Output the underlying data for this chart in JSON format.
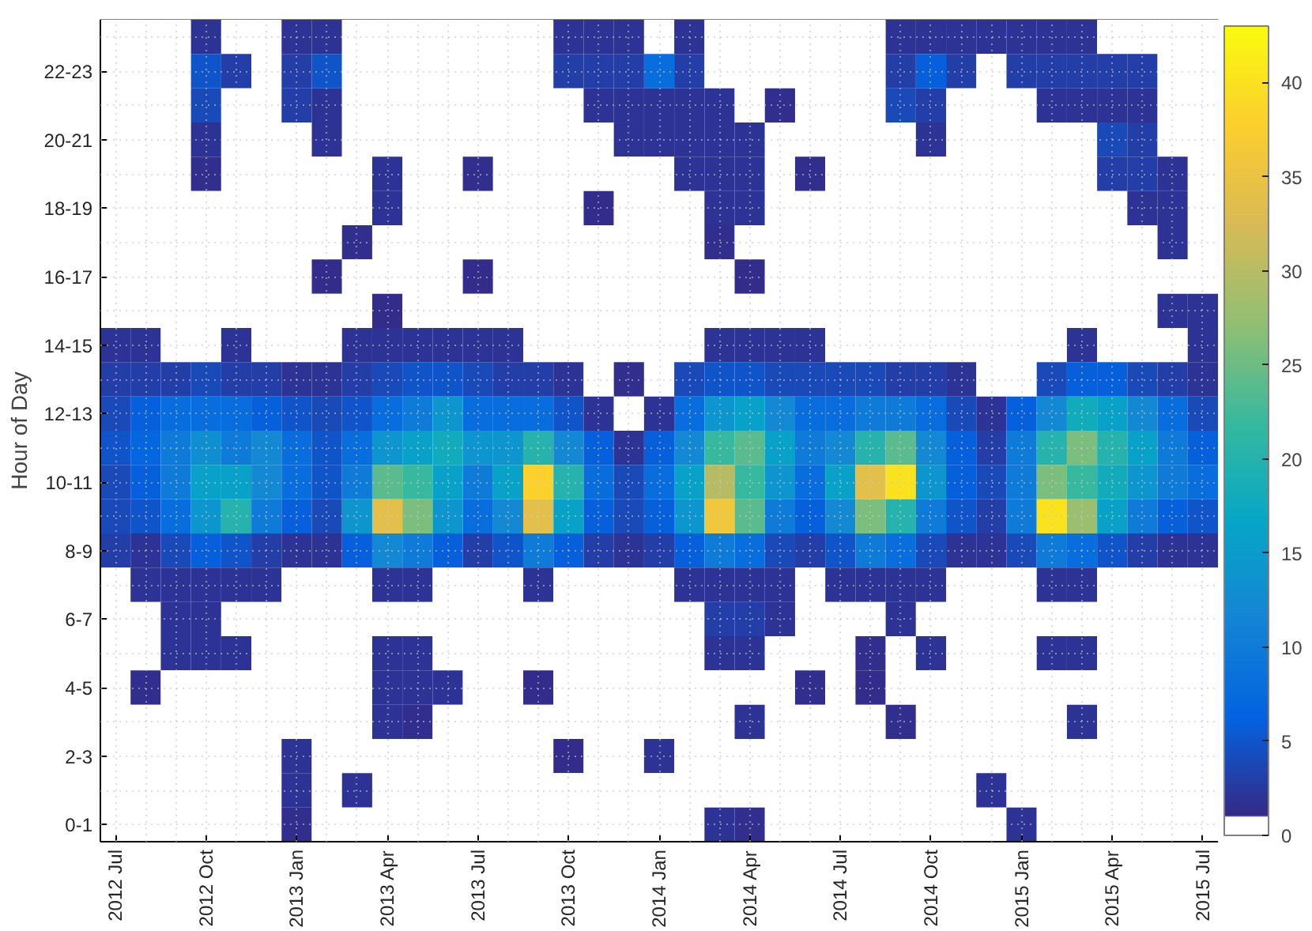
{
  "chart_data": {
    "type": "heatmap",
    "ylabel": "Hour of Day",
    "categories": [
      "2012 Jul",
      null,
      null,
      "2012 Oct",
      null,
      null,
      "2013 Jan",
      null,
      null,
      "2013 Apr",
      null,
      null,
      "2013 Jul",
      null,
      null,
      "2013 Oct",
      null,
      null,
      "2014 Jan",
      null,
      null,
      "2014 Apr",
      null,
      null,
      "2014 Jul",
      null,
      null,
      "2014 Oct",
      null,
      null,
      "2015 Jan",
      null,
      null,
      "2015 Apr",
      null,
      null,
      "2015 Jul"
    ],
    "y_categories": [
      null,
      "22-23",
      null,
      "20-21",
      null,
      "18-19",
      null,
      "16-17",
      null,
      "14-15",
      null,
      "12-13",
      null,
      "10-11",
      null,
      "8-9",
      null,
      "6-7",
      null,
      "4-5",
      null,
      "2-3",
      null,
      "0-1"
    ],
    "cells": [
      [
        0,
        0,
        0,
        2,
        0,
        0,
        2,
        2,
        0,
        0,
        0,
        0,
        0,
        0,
        0,
        2,
        2,
        2,
        0,
        2,
        0,
        0,
        0,
        0,
        0,
        0,
        2,
        2,
        2,
        2,
        2,
        2,
        2,
        0,
        0,
        0,
        0
      ],
      [
        0,
        0,
        0,
        5,
        3,
        0,
        3,
        5,
        0,
        0,
        0,
        0,
        0,
        0,
        0,
        3,
        3,
        3,
        8,
        3,
        0,
        0,
        0,
        0,
        0,
        0,
        3,
        6,
        3,
        0,
        3,
        3,
        3,
        3,
        3,
        0,
        0
      ],
      [
        0,
        0,
        0,
        4,
        0,
        0,
        3,
        2,
        0,
        0,
        0,
        0,
        0,
        0,
        0,
        0,
        2,
        2,
        2,
        2,
        2,
        0,
        1.5,
        0,
        0,
        0,
        4,
        3,
        0,
        0,
        0,
        2,
        2,
        2,
        2,
        0,
        0
      ],
      [
        0,
        0,
        0,
        2,
        0,
        0,
        0,
        2,
        0,
        0,
        0,
        0,
        0,
        0,
        0,
        0,
        0,
        2,
        2,
        2,
        2,
        2,
        0,
        0,
        0,
        0,
        0,
        2,
        0,
        0,
        0,
        0,
        0,
        4,
        3,
        0,
        0
      ],
      [
        0,
        0,
        0,
        1.5,
        0,
        0,
        0,
        0,
        0,
        2,
        0,
        0,
        1.5,
        0,
        0,
        0,
        0,
        0,
        0,
        2,
        2,
        2,
        0,
        1.5,
        0,
        0,
        0,
        0,
        0,
        0,
        0,
        0,
        0,
        3,
        3,
        2,
        0
      ],
      [
        0,
        0,
        0,
        0,
        0,
        0,
        0,
        0,
        0,
        2,
        0,
        0,
        0,
        0,
        0,
        0,
        1.2,
        0,
        0,
        0,
        2,
        2,
        0,
        0,
        0,
        0,
        0,
        0,
        0,
        0,
        0,
        0,
        0,
        0,
        2,
        2,
        0
      ],
      [
        0,
        0,
        0,
        0,
        0,
        0,
        0,
        0,
        1.5,
        0,
        0,
        0,
        0,
        0,
        0,
        0,
        0,
        0,
        0,
        0,
        1.5,
        0,
        0,
        0,
        0,
        0,
        0,
        0,
        0,
        0,
        0,
        0,
        0,
        0,
        0,
        2,
        0
      ],
      [
        0,
        0,
        0,
        0,
        0,
        0,
        0,
        1.2,
        0,
        0,
        0,
        0,
        1.2,
        0,
        0,
        0,
        0,
        0,
        0,
        0,
        0,
        1.2,
        0,
        0,
        0,
        0,
        0,
        0,
        0,
        0,
        0,
        0,
        0,
        0,
        0,
        0,
        0
      ],
      [
        0,
        0,
        0,
        0,
        0,
        0,
        0,
        0,
        0,
        1.2,
        0,
        0,
        0,
        0,
        0,
        0,
        0,
        0,
        0,
        0,
        0,
        0,
        0,
        0,
        0,
        0,
        0,
        0,
        0,
        0,
        0,
        0,
        0,
        0,
        0,
        2,
        2
      ],
      [
        2,
        2,
        0,
        0,
        2,
        0,
        0,
        0,
        2,
        2,
        2,
        2,
        2,
        2,
        0,
        0,
        0,
        0,
        0,
        0,
        2,
        2,
        2,
        2,
        0,
        0,
        0,
        0,
        0,
        0,
        0,
        0,
        2,
        0,
        0,
        0,
        2
      ],
      [
        3,
        3,
        3,
        4,
        3,
        3,
        2,
        2,
        3,
        4,
        5,
        5,
        4,
        3,
        3,
        2,
        0,
        1.5,
        0,
        4,
        5,
        5,
        4,
        4,
        4,
        4,
        3,
        3,
        2,
        1,
        0,
        4,
        6,
        6,
        4,
        3,
        2
      ],
      [
        4,
        6,
        8,
        8,
        8,
        6,
        5,
        4,
        5,
        8,
        10,
        14,
        8,
        8,
        8,
        5,
        2,
        0,
        2,
        8,
        14,
        16,
        12,
        8,
        8,
        10,
        10,
        8,
        4,
        2,
        6,
        12,
        18,
        16,
        12,
        8,
        4
      ],
      [
        5,
        7,
        10,
        13,
        10,
        12,
        8,
        5,
        8,
        14,
        16,
        18,
        14,
        14,
        20,
        12,
        6,
        2,
        6,
        12,
        22,
        24,
        16,
        10,
        12,
        20,
        24,
        12,
        6,
        3,
        10,
        20,
        26,
        20,
        16,
        10,
        6
      ],
      [
        4,
        6,
        10,
        16,
        16,
        12,
        8,
        5,
        10,
        24,
        22,
        16,
        10,
        16,
        38,
        20,
        8,
        4,
        8,
        16,
        30,
        22,
        14,
        8,
        16,
        34,
        40,
        14,
        6,
        4,
        10,
        26,
        22,
        18,
        14,
        10,
        8
      ],
      [
        4,
        5,
        8,
        14,
        20,
        10,
        6,
        4,
        14,
        34,
        26,
        14,
        8,
        12,
        34,
        16,
        6,
        4,
        6,
        14,
        36,
        24,
        10,
        6,
        12,
        26,
        20,
        10,
        5,
        3,
        10,
        40,
        28,
        16,
        10,
        6,
        5
      ],
      [
        3,
        2,
        4,
        6,
        5,
        3,
        2,
        2,
        6,
        12,
        10,
        6,
        3,
        5,
        10,
        6,
        3,
        2,
        3,
        6,
        10,
        8,
        4,
        3,
        5,
        10,
        8,
        4,
        2,
        2,
        4,
        10,
        8,
        5,
        3,
        2,
        2
      ],
      [
        0,
        2,
        2,
        2,
        2,
        2,
        0,
        0,
        0,
        2,
        2,
        0,
        0,
        0,
        2,
        0,
        0,
        0,
        0,
        2,
        2,
        2,
        2,
        0,
        2,
        2,
        2,
        2,
        0,
        0,
        0,
        2,
        2,
        0,
        0,
        0,
        0
      ],
      [
        0,
        0,
        2,
        2,
        0,
        0,
        0,
        0,
        0,
        0,
        0,
        0,
        0,
        0,
        0,
        0,
        0,
        0,
        0,
        0,
        3,
        3,
        2,
        0,
        0,
        0,
        2,
        0,
        0,
        0,
        0,
        0,
        0,
        0,
        0,
        0,
        0
      ],
      [
        0,
        0,
        2,
        2,
        2,
        0,
        0,
        0,
        0,
        2,
        2,
        0,
        0,
        0,
        0,
        0,
        0,
        0,
        0,
        0,
        2,
        2,
        0,
        0,
        0,
        1.5,
        0,
        2,
        0,
        0,
        0,
        2,
        2,
        0,
        0,
        0,
        0
      ],
      [
        0,
        1.5,
        0,
        0,
        0,
        0,
        0,
        0,
        0,
        2,
        2,
        2,
        0,
        0,
        1.2,
        0,
        0,
        0,
        0,
        0,
        0,
        0,
        0,
        1.5,
        0,
        1.2,
        0,
        0,
        0,
        0,
        0,
        0,
        0,
        0,
        0,
        0,
        0
      ],
      [
        0,
        0,
        0,
        0,
        0,
        0,
        0,
        0,
        0,
        2,
        1.5,
        0,
        0,
        0,
        0,
        0,
        0,
        0,
        0,
        0,
        0,
        2,
        0,
        0,
        0,
        0,
        1.5,
        0,
        0,
        0,
        0,
        0,
        2,
        0,
        0,
        0,
        0
      ],
      [
        0,
        0,
        0,
        0,
        0,
        0,
        2,
        0,
        0,
        0,
        0,
        0,
        0,
        0,
        0,
        1.2,
        0,
        0,
        2,
        0,
        0,
        0,
        0,
        0,
        0,
        0,
        0,
        0,
        0,
        0,
        0,
        0,
        0,
        0,
        0,
        0,
        0
      ],
      [
        0,
        0,
        0,
        0,
        0,
        0,
        2,
        0,
        2,
        0,
        0,
        0,
        0,
        0,
        0,
        0,
        0,
        0,
        0,
        0,
        0,
        0,
        0,
        0,
        0,
        0,
        0,
        0,
        0,
        2,
        0,
        0,
        0,
        0,
        0,
        0,
        0
      ],
      [
        0,
        0,
        0,
        0,
        0,
        0,
        1.5,
        0,
        0,
        0,
        0,
        0,
        0,
        0,
        0,
        0,
        0,
        0,
        0,
        0,
        2,
        1.5,
        0,
        0,
        0,
        0,
        0,
        0,
        0,
        0,
        2,
        0,
        0,
        0,
        0,
        0,
        0
      ]
    ],
    "clim": [
      0,
      43
    ],
    "cticks": [
      0,
      5,
      10,
      15,
      20,
      25,
      30,
      35,
      40
    ],
    "grid": true
  }
}
